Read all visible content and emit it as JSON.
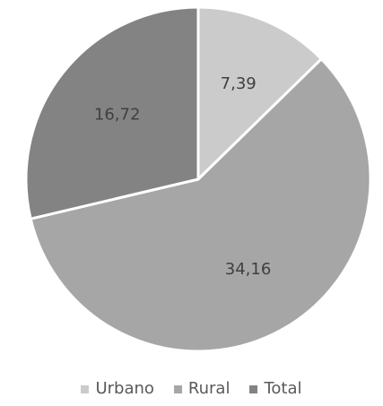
{
  "chart_data": {
    "type": "pie",
    "categories": [
      "Urbano",
      "Rural",
      "Total"
    ],
    "values": [
      7.39,
      34.16,
      16.72
    ],
    "value_labels": [
      "7,39",
      "34,16",
      "16,72"
    ],
    "colors": [
      "#cbcbcb",
      "#a6a6a6",
      "#838383"
    ],
    "start_angle_deg": 0,
    "direction": "clockwise",
    "legend_position": "bottom"
  }
}
